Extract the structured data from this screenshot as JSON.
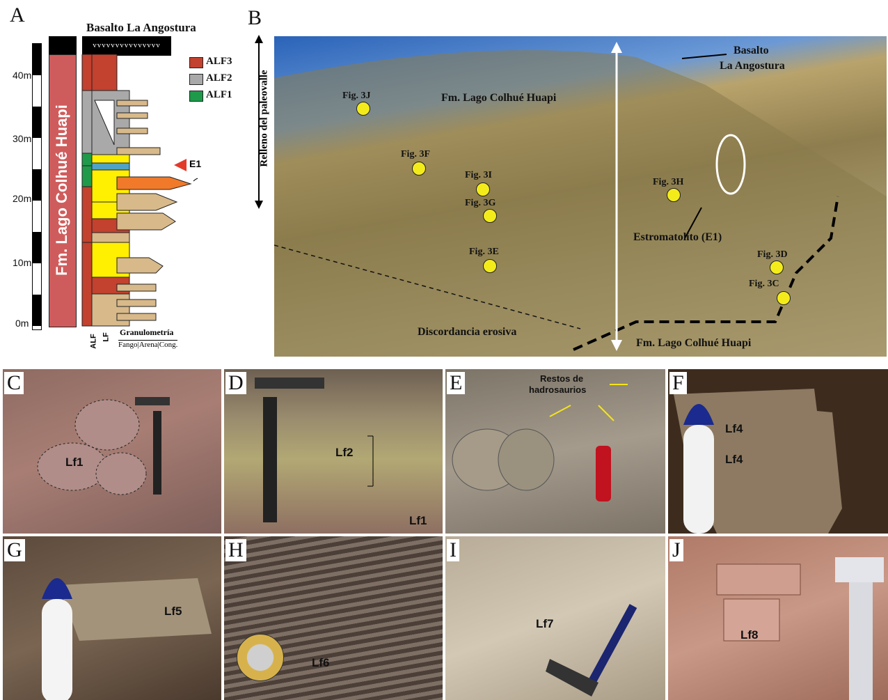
{
  "panel_letters": [
    "A",
    "B",
    "C",
    "D",
    "E",
    "F",
    "G",
    "H",
    "I",
    "J"
  ],
  "column": {
    "title": "Basalto La Angostura",
    "formation": "Fm. Lago Colhué Huapi",
    "y_ticks": [
      "40m",
      "30m",
      "20m",
      "10m",
      "0m"
    ],
    "legend": [
      {
        "label": "ALF3",
        "color": "#c2412f"
      },
      {
        "label": "ALF2",
        "color": "#a9a9a9"
      },
      {
        "label": "ALF1",
        "color": "#1f9a4a"
      }
    ],
    "col_labels": [
      "ALF",
      "LF"
    ],
    "granulometria": "Granulometría",
    "grain_sizes": "Fango|Arena|Cong.",
    "marker": "E1"
  },
  "panel_b": {
    "basalt": "Basalto La Angostura",
    "basalt_line1": "Basalto",
    "basalt_line2": "La Angostura",
    "formation_top": "Fm. Lago Colhué Huapi",
    "formation_bottom": "Fm. Lago Colhué Huapi",
    "relleno": "Relleno del paleovalle",
    "discordancia": "Discordancia erosiva",
    "estromatolito": "Estromatolito (E1)",
    "figs": [
      "Fig. 3J",
      "Fig. 3F",
      "Fig. 3I",
      "Fig. 3G",
      "Fig. 3E",
      "Fig. 3H",
      "Fig. 3D",
      "Fig. 3C"
    ]
  },
  "photo_labels": {
    "c": "Lf1",
    "d_lf2": "Lf2",
    "d_lf1": "Lf1",
    "e_text": "Restos de hadrosaurios",
    "e_line1": "Restos de",
    "e_line2": "hadrosaurios",
    "f_a": "Lf4",
    "f_b": "Lf4",
    "g": "Lf5",
    "h": "Lf6",
    "i": "Lf7",
    "j": "Lf8"
  },
  "colors": {
    "yellow": "#ffef00",
    "tan": "#d8b98a",
    "red": "#c2412f",
    "grey": "#a9a9a9",
    "green": "#1f9a4a",
    "dot": "#f4ec1a"
  }
}
